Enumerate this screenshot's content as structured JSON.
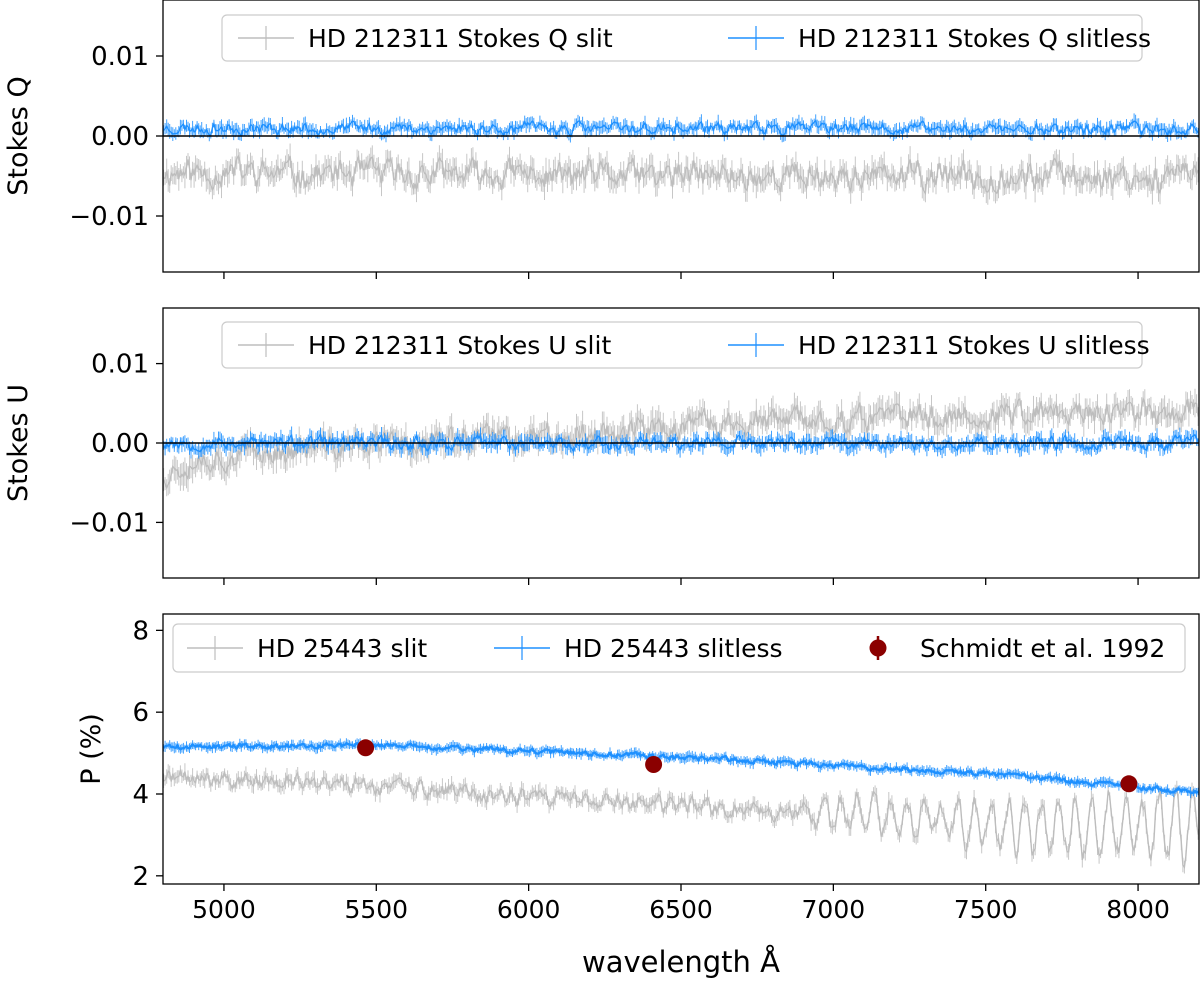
{
  "xlabel": "wavelength Å",
  "xlim": [
    4800,
    8200
  ],
  "x_ticks": [
    5000,
    5500,
    6000,
    6500,
    7000,
    7500,
    8000
  ],
  "colors": {
    "slit": "#bdbdbd",
    "slitless": "#1e90ff",
    "reference": "#8b0000",
    "zero_line": "#000000"
  },
  "chart_data": [
    {
      "type": "line",
      "ylabel": "Stokes Q",
      "ylim": [
        -0.017,
        0.017
      ],
      "yticks": [
        0.01,
        0.0,
        -0.01
      ],
      "ytick_labels": [
        "0.01",
        "0.00",
        "−0.01"
      ],
      "zero_line": true,
      "legend_position": "top-center",
      "series": [
        {
          "name": "HD 212311 Stokes Q slit",
          "style": "slit",
          "model": {
            "kind": "noise",
            "base": [
              [
                4800,
                -0.0045
              ],
              [
                5500,
                -0.0048
              ],
              [
                6500,
                -0.005
              ],
              [
                7500,
                -0.005
              ],
              [
                8200,
                -0.005
              ]
            ],
            "amp": 0.0017,
            "err": 0.0012,
            "seed": 11
          }
        },
        {
          "name": "HD 212311 Stokes Q slitless",
          "style": "slitless",
          "model": {
            "kind": "noise",
            "base": [
              [
                4800,
                0.001
              ],
              [
                8200,
                0.0009
              ]
            ],
            "amp": 0.0007,
            "err": 0.0007,
            "seed": 23
          }
        }
      ]
    },
    {
      "type": "line",
      "ylabel": "Stokes U",
      "ylim": [
        -0.017,
        0.017
      ],
      "yticks": [
        0.01,
        0.0,
        -0.01
      ],
      "ytick_labels": [
        "0.01",
        "0.00",
        "−0.01"
      ],
      "zero_line": true,
      "legend_position": "top-center",
      "series": [
        {
          "name": "HD 212311 Stokes U slit",
          "style": "slit",
          "model": {
            "kind": "noise",
            "base": [
              [
                4800,
                -0.004
              ],
              [
                4900,
                -0.002
              ],
              [
                5200,
                -0.001
              ],
              [
                5800,
                0.0005
              ],
              [
                6500,
                0.002
              ],
              [
                7000,
                0.003
              ],
              [
                7500,
                0.0035
              ],
              [
                8200,
                0.004
              ]
            ],
            "amp": 0.0016,
            "err": 0.0013,
            "seed": 37
          }
        },
        {
          "name": "HD 212311 Stokes U slitless",
          "style": "slitless",
          "model": {
            "kind": "noise",
            "base": [
              [
                4800,
                0.0
              ],
              [
                8200,
                0.0
              ]
            ],
            "amp": 0.0008,
            "err": 0.0008,
            "seed": 53
          }
        }
      ]
    },
    {
      "type": "line",
      "ylabel": "P (%)",
      "ylim": [
        1.8,
        8.4
      ],
      "yticks": [
        2,
        4,
        6,
        8
      ],
      "ytick_labels": [
        "2",
        "4",
        "6",
        "8"
      ],
      "zero_line": false,
      "legend_position": "top",
      "series": [
        {
          "name": "HD 25443 slit",
          "style": "slit",
          "model": {
            "kind": "noise",
            "base": [
              [
                4800,
                4.4
              ],
              [
                5500,
                4.2
              ],
              [
                6000,
                3.9
              ],
              [
                6500,
                3.7
              ],
              [
                7000,
                3.5
              ],
              [
                7500,
                3.3
              ],
              [
                8200,
                3.2
              ]
            ],
            "amp": 0.2,
            "err": 0.15,
            "seed": 71,
            "osc": {
              "start": 6900,
              "period": 55,
              "amp_start": 0.3,
              "amp_end": 1.0
            }
          }
        },
        {
          "name": "HD 25443 slitless",
          "style": "slitless",
          "model": {
            "kind": "noise",
            "base": [
              [
                4800,
                5.15
              ],
              [
                5500,
                5.2
              ],
              [
                6000,
                5.05
              ],
              [
                6500,
                4.9
              ],
              [
                7000,
                4.7
              ],
              [
                7500,
                4.5
              ],
              [
                8200,
                4.05
              ]
            ],
            "amp": 0.06,
            "err": 0.1,
            "seed": 89
          }
        },
        {
          "name": "Schmidt et al. 1992",
          "style": "reference",
          "points": [
            [
              5465,
              5.13
            ],
            [
              6410,
              4.72
            ],
            [
              7970,
              4.25
            ]
          ]
        }
      ]
    }
  ]
}
